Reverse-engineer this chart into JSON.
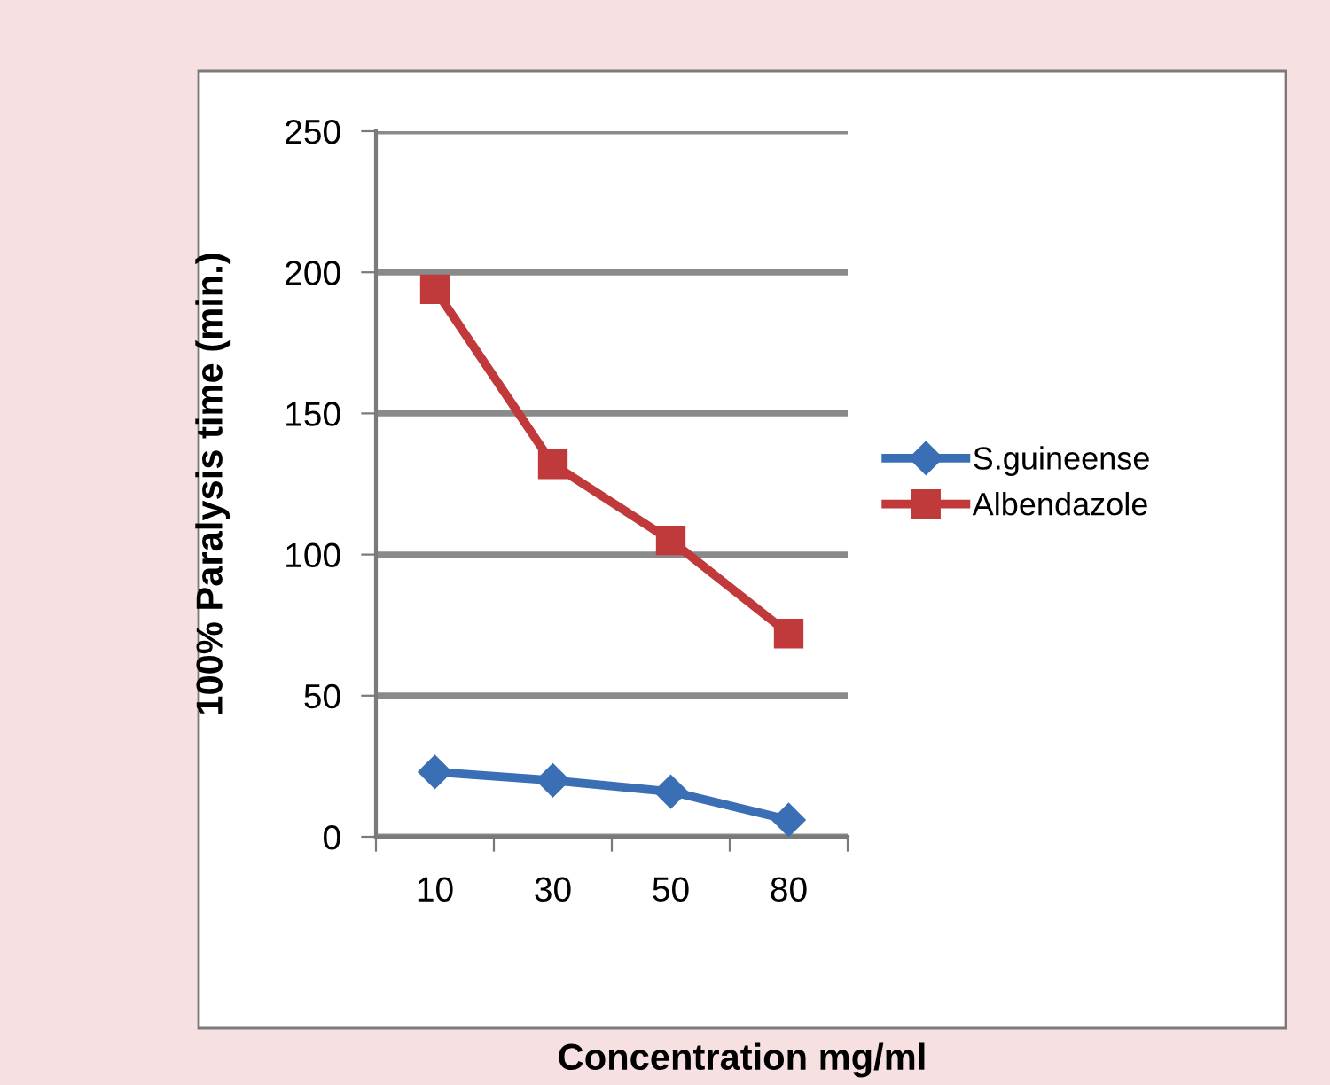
{
  "chart_data": {
    "type": "line",
    "xlabel": "Concentration mg/ml",
    "ylabel": "100% Paralysis time (min.)",
    "categories": [
      "10",
      "30",
      "50",
      "80"
    ],
    "series": [
      {
        "name": "S.guineense",
        "color": "#3a6fb5",
        "marker": "diamond",
        "values": [
          23,
          20,
          16,
          6
        ]
      },
      {
        "name": "Albendazole",
        "color": "#c0393b",
        "marker": "square",
        "values": [
          194,
          132,
          105,
          72
        ]
      }
    ],
    "ylim": [
      0,
      250
    ],
    "yticks": [
      0,
      50,
      100,
      150,
      200,
      250
    ],
    "grid": "y",
    "legend": "right"
  }
}
